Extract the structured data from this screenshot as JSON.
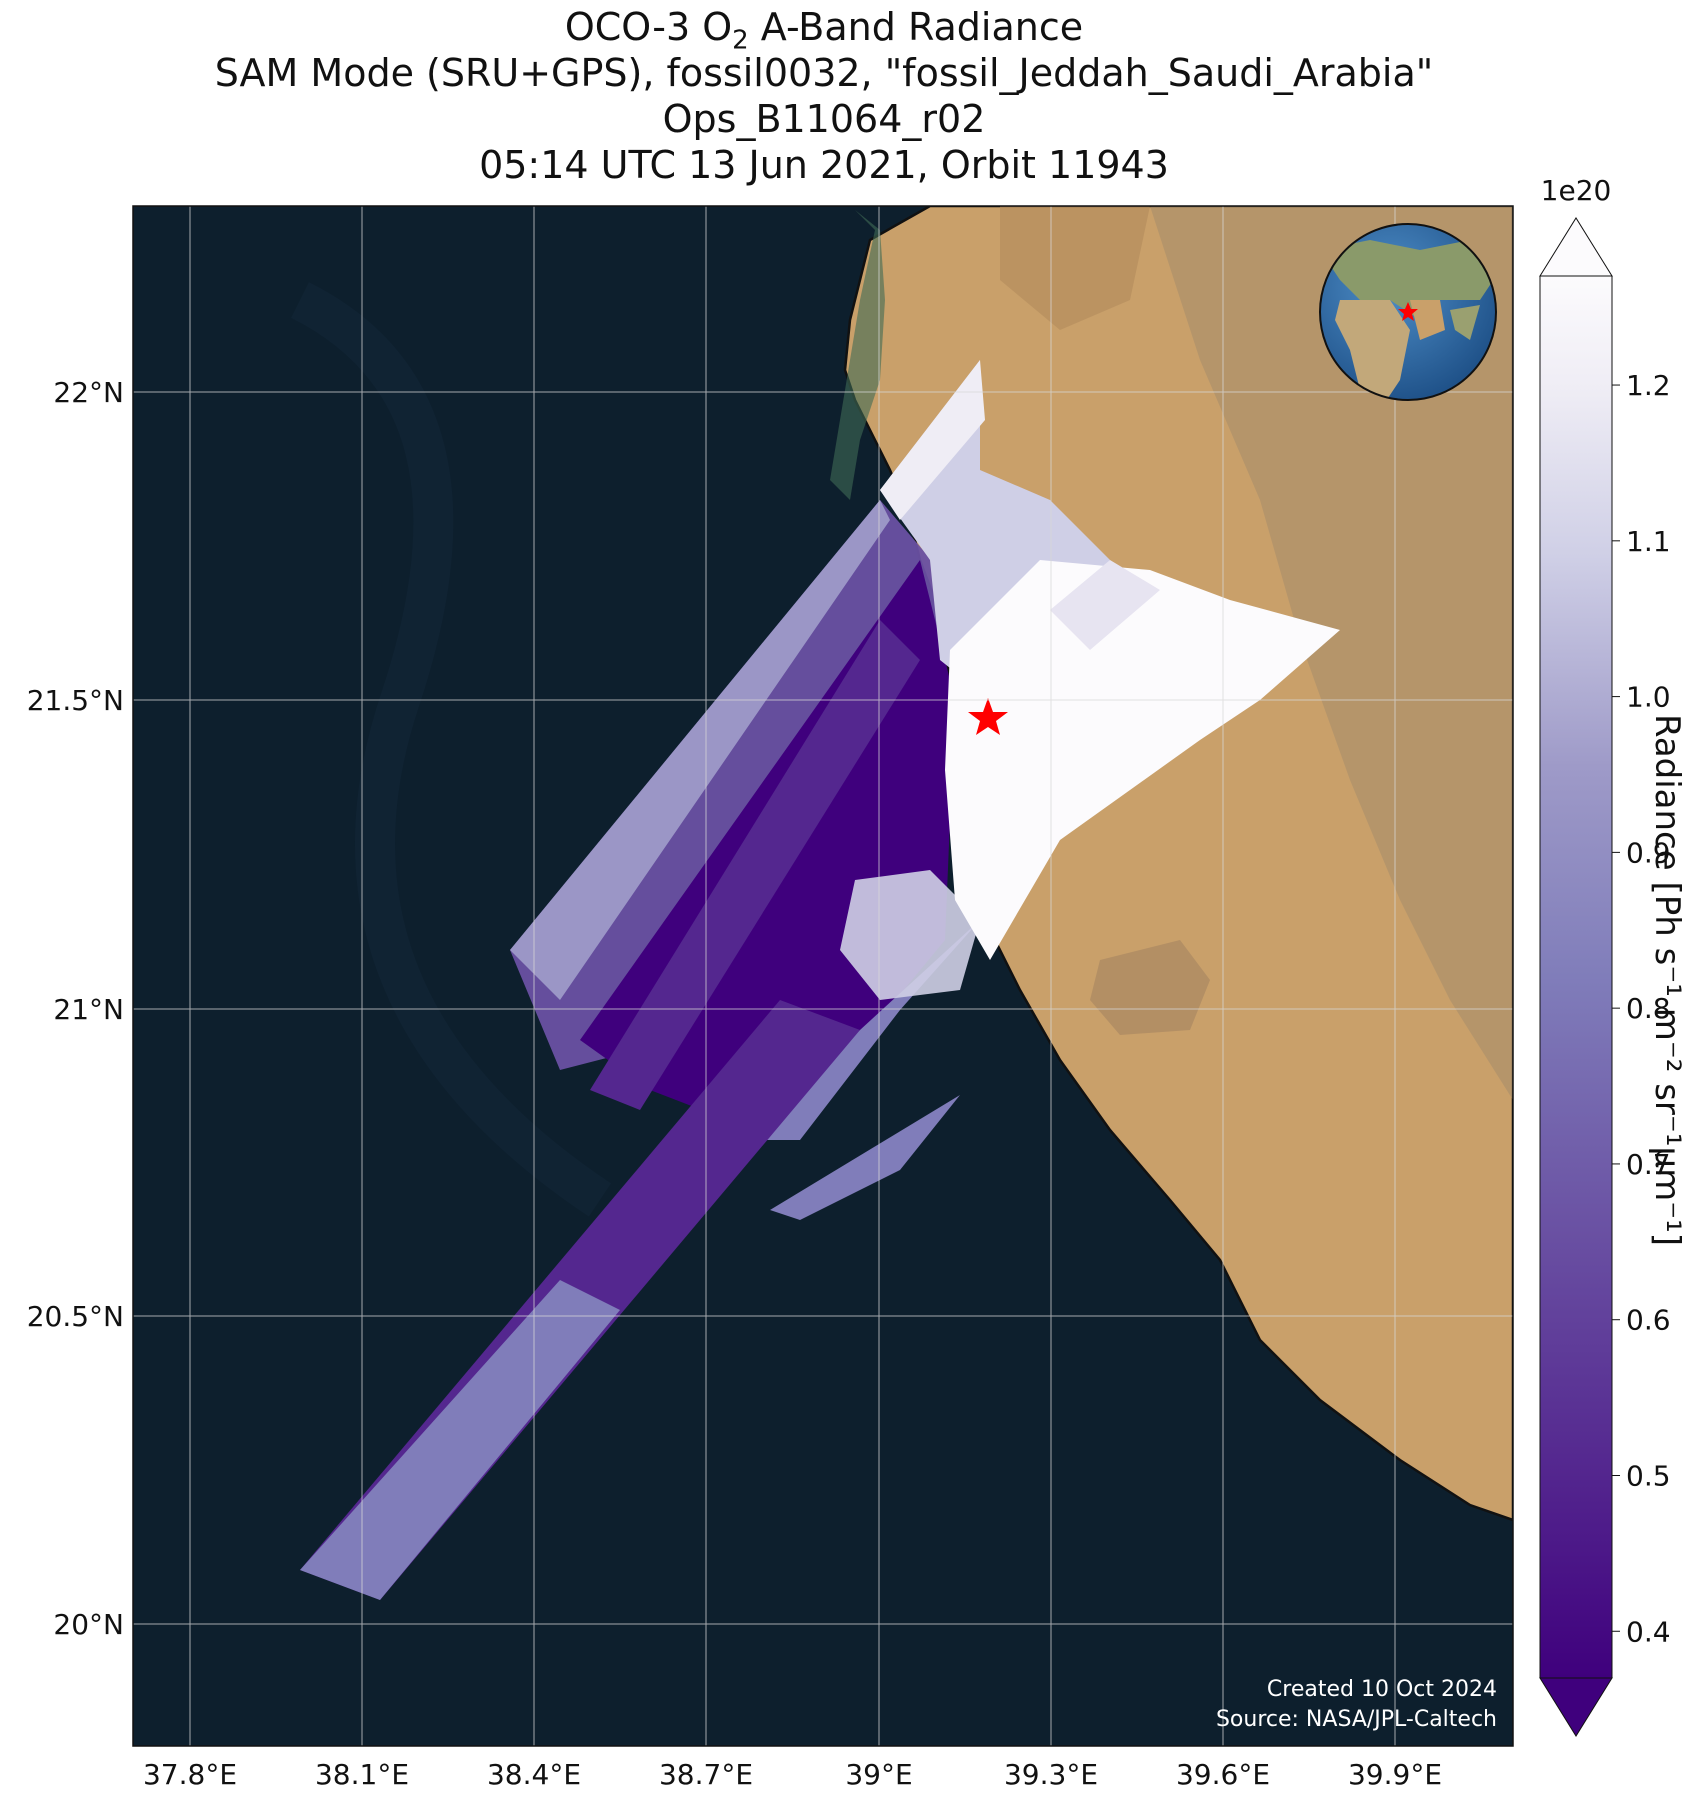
{
  "title": {
    "line1_pre": "OCO-3 O",
    "line1_sub": "2",
    "line1_post": " A-Band Radiance",
    "line2": "SAM Mode (SRU+GPS), fossil0032, \"fossil_Jeddah_Saudi_Arabia\"",
    "line3": "Ops_B11064_r02",
    "line4": "05:14 UTC 13 Jun 2021, Orbit 11943"
  },
  "map": {
    "lon_range": [
      37.7,
      40.1
    ],
    "lat_range": [
      19.8,
      22.3
    ],
    "lon_ticks": [
      "37.8°E",
      "38.1°E",
      "38.4°E",
      "38.7°E",
      "39°E",
      "39.3°E",
      "39.6°E",
      "39.9°E"
    ],
    "lat_ticks": [
      "22°N",
      "21.5°N",
      "21°N",
      "20.5°N",
      "20°N"
    ],
    "target_marker": {
      "name": "Jeddah",
      "color": "#ff0000",
      "icon": "star-icon"
    },
    "ocean_color": "#0d1f2d",
    "land_color": "#c9a06a",
    "gridlines": true
  },
  "colorbar": {
    "multiplier": "1e20",
    "label": "Radiance [Ph s⁻¹ m⁻² sr⁻¹μm⁻¹]",
    "ticks": [
      "0.4",
      "0.5",
      "0.6",
      "0.7",
      "0.8",
      "0.9",
      "1.0",
      "1.1",
      "1.2"
    ],
    "range": [
      0.37,
      1.27
    ],
    "colormap": "Purples_r"
  },
  "inset_globe": {
    "icon": "globe-icon",
    "marker_color": "#ff0000"
  },
  "credits": {
    "created": "Created 10 Oct 2024",
    "source": "Source: NASA/JPL-Caltech"
  }
}
